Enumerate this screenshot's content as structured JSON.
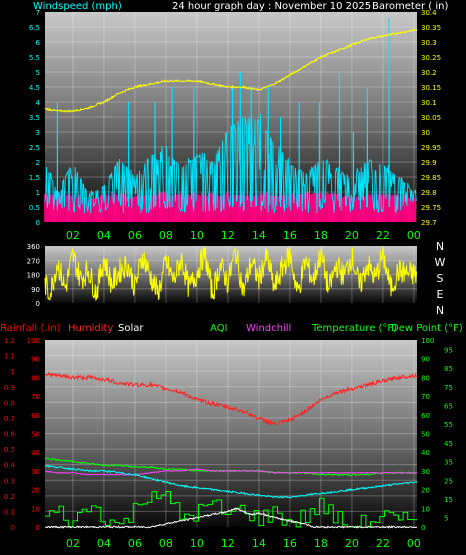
{
  "colors": {
    "wind": "#00e5ff",
    "gust": "#ff0080",
    "barometer": "#ffff00",
    "direction": "#ffff00",
    "humidity": "#ff2020",
    "temperature": "#00ffff",
    "dewpoint": "#00ff00",
    "windchill": "#ff40ff",
    "solar": "#ffffff",
    "rain": "#ff0000",
    "axis_left_top": "#00ffff",
    "axis_right_top": "#ffff00",
    "axis_left_bottom": "#ff0000",
    "axis_right_bottom": "#00ff00",
    "time_labels": "#00ff00",
    "compass": "#ffffff"
  },
  "chart_data": [
    {
      "type": "line",
      "panel": "top",
      "title": "24 hour graph day : November 10 2025",
      "left_label": "Windspeed (mph)",
      "right_label": "Barometer ( in)",
      "grid": true,
      "y_left_ticks": [
        "0",
        "0.5",
        "1",
        "1.5",
        "2",
        "2.5",
        "3",
        "3.5",
        "4",
        "4.5",
        "5",
        "5.5",
        "6",
        "6.5",
        "7"
      ],
      "y_left_range": [
        0,
        7
      ],
      "y_right_ticks": [
        "29.7",
        "29.75",
        "29.8",
        "29.85",
        "29.9",
        "29.95",
        "30",
        "30.05",
        "30.1",
        "30.15",
        "30.2",
        "30.25",
        "30.3",
        "30.35",
        "30.4"
      ],
      "y_right_range": [
        29.7,
        30.4
      ],
      "series": [
        {
          "key": "barometer",
          "axis": "right",
          "x": [
            0,
            1,
            2,
            3,
            4,
            5,
            6,
            7,
            8,
            9,
            10,
            11,
            12,
            13,
            14,
            15,
            16,
            17,
            18,
            19,
            20,
            21,
            22,
            23,
            24
          ],
          "values": [
            30.08,
            30.07,
            30.07,
            30.08,
            30.1,
            30.13,
            30.15,
            30.16,
            30.17,
            30.17,
            30.17,
            30.16,
            30.15,
            30.15,
            30.14,
            30.16,
            30.19,
            30.22,
            30.25,
            30.27,
            30.29,
            30.31,
            30.32,
            30.33,
            30.34
          ]
        },
        {
          "key": "wind",
          "axis": "left",
          "style": "spikes",
          "x": [
            0,
            1,
            2,
            3,
            4,
            5,
            6,
            7,
            8,
            9,
            10,
            11,
            12,
            13,
            14,
            15,
            16,
            17,
            18,
            19,
            20,
            21,
            22,
            23,
            24
          ],
          "values": [
            2.2,
            1.0,
            2.0,
            0.9,
            1.2,
            2.1,
            1.5,
            2.2,
            2.4,
            1.8,
            2.2,
            2.0,
            3.1,
            3.5,
            3.4,
            2.6,
            1.9,
            1.6,
            2.1,
            1.8,
            1.4,
            2.1,
            1.9,
            1.5,
            1.0
          ],
          "peaks_x": [
            1.0,
            5.6,
            7.3,
            8.4,
            9.8,
            12.3,
            12.8,
            13.5,
            14.6,
            15.4,
            16.6,
            17.9,
            19.2,
            20.1,
            21.0,
            22.4
          ],
          "peaks": [
            4.0,
            4.0,
            4.0,
            4.5,
            4.5,
            4.5,
            5.0,
            4.5,
            4.5,
            3.5,
            4.0,
            4.0,
            5.0,
            3.0,
            4.5,
            6.8
          ]
        },
        {
          "key": "gust",
          "axis": "left",
          "style": "band",
          "x": [
            0,
            1,
            2,
            3,
            4,
            5,
            6,
            7,
            8,
            9,
            10,
            11,
            12,
            13,
            14,
            15,
            16,
            17,
            18,
            19,
            20,
            21,
            22,
            23,
            24
          ],
          "values": [
            1.0,
            1.0,
            1.0,
            0.8,
            1.0,
            1.0,
            0.9,
            1.0,
            1.0,
            1.0,
            1.0,
            1.0,
            1.0,
            1.0,
            1.0,
            1.0,
            1.0,
            1.0,
            1.0,
            1.0,
            0.9,
            1.0,
            1.0,
            1.0,
            0.9
          ]
        }
      ]
    },
    {
      "type": "line",
      "panel": "direction",
      "y_ticks": [
        "0",
        "90",
        "180",
        "270",
        "360"
      ],
      "y_range": [
        0,
        360
      ],
      "compass_labels": [
        "N",
        "W",
        "S",
        "E",
        "N"
      ],
      "grid": true,
      "series": [
        {
          "key": "direction",
          "x": [
            0,
            0.5,
            1,
            1.5,
            2,
            2.5,
            3,
            3.5,
            4,
            4.5,
            5,
            5.5,
            6,
            6.5,
            7,
            7.5,
            8,
            8.5,
            9,
            9.5,
            10,
            10.5,
            11,
            11.5,
            12,
            12.5,
            13,
            13.5,
            14,
            14.5,
            15,
            15.5,
            16,
            16.5,
            17,
            17.5,
            18,
            18.5,
            19,
            19.5,
            20,
            20.5,
            21,
            21.5,
            22,
            22.5,
            23,
            23.5,
            24
          ],
          "values": [
            180,
            45,
            260,
            90,
            300,
            150,
            210,
            60,
            280,
            120,
            200,
            250,
            100,
            300,
            170,
            60,
            260,
            140,
            280,
            90,
            190,
            320,
            60,
            240,
            130,
            330,
            70,
            260,
            150,
            300,
            90,
            220,
            310,
            60,
            270,
            140,
            320,
            80,
            240,
            170,
            300,
            100,
            250,
            150,
            310,
            90,
            200,
            190,
            180
          ]
        }
      ]
    },
    {
      "type": "line",
      "panel": "bottom",
      "left_labels": [
        "Rainfall (.in)",
        "Humidity",
        "Solar"
      ],
      "right_labels": [
        "AQI",
        "Windchill",
        "Temperature (°F)",
        "Dew Point (°F)"
      ],
      "grid": true,
      "y_rain_ticks": [
        "0",
        "0.1",
        "0.2",
        "0.3",
        "0.4",
        "0.5",
        "0.6",
        "0.7",
        "0.8",
        "0.9",
        "1",
        "1.1",
        "1.2"
      ],
      "y_rain_range": [
        0,
        1.2
      ],
      "y_humidity_ticks": [
        "0",
        "10",
        "20",
        "30",
        "40",
        "50",
        "60",
        "70",
        "80",
        "90",
        "100"
      ],
      "y_humidity_range": [
        0,
        100
      ],
      "y_temp_ticks": [
        "0",
        "5",
        "10",
        "15",
        "20",
        "25",
        "30",
        "35",
        "40",
        "45",
        "50",
        "55",
        "60",
        "65",
        "70",
        "75",
        "80",
        "85",
        "90",
        "95",
        "100"
      ],
      "y_temp_range": [
        0,
        100
      ],
      "x_ticks": [
        "02",
        "04",
        "06",
        "08",
        "10",
        "12",
        "14",
        "16",
        "18",
        "20",
        "22",
        "00"
      ],
      "x_tick_hours": [
        2,
        4,
        6,
        8,
        10,
        12,
        14,
        16,
        18,
        20,
        22,
        24
      ],
      "x_range": [
        0,
        24
      ],
      "series": [
        {
          "key": "humidity",
          "axis": "humidity",
          "x": [
            0,
            1,
            2,
            3,
            4,
            5,
            6,
            7,
            8,
            9,
            10,
            11,
            12,
            13,
            14,
            15,
            16,
            17,
            18,
            19,
            20,
            21,
            22,
            23,
            24
          ],
          "values": [
            82,
            81,
            80,
            80,
            79,
            77,
            76,
            76,
            74,
            72,
            68,
            66,
            64,
            62,
            58,
            55,
            57,
            62,
            68,
            72,
            74,
            76,
            78,
            80,
            81
          ]
        },
        {
          "key": "temperature",
          "axis": "temp",
          "x": [
            0,
            1,
            2,
            3,
            4,
            5,
            6,
            7,
            8,
            9,
            10,
            11,
            12,
            13,
            14,
            15,
            16,
            17,
            18,
            19,
            20,
            21,
            22,
            23,
            24
          ],
          "values": [
            33,
            32,
            31,
            30,
            30,
            29,
            28,
            26,
            24,
            22,
            21,
            20,
            19,
            18,
            17,
            16,
            16,
            17,
            18,
            19,
            20,
            21,
            22,
            23,
            24
          ]
        },
        {
          "key": "dewpoint",
          "axis": "temp",
          "x": [
            0,
            1,
            2,
            3,
            4,
            5,
            6,
            7,
            8,
            9,
            10,
            11,
            12,
            13,
            14,
            15,
            16,
            17,
            18,
            19,
            20,
            21,
            22,
            23,
            24
          ],
          "values": [
            37,
            36,
            35,
            34,
            33,
            33,
            32,
            32,
            31,
            31,
            30,
            30,
            30,
            30,
            30,
            29,
            29,
            29,
            28,
            28,
            28,
            28,
            29,
            29,
            29
          ]
        },
        {
          "key": "windchill",
          "axis": "temp",
          "x": [
            0,
            1,
            2,
            3,
            4,
            5,
            6,
            7,
            8,
            9,
            10,
            11,
            12,
            13,
            14,
            15,
            16,
            17,
            18,
            19,
            20,
            21,
            22,
            23,
            24
          ],
          "values": [
            30,
            29,
            29,
            28,
            28,
            28,
            28,
            29,
            30,
            30,
            31,
            30,
            30,
            30,
            30,
            29,
            29,
            29,
            29,
            29,
            29,
            29,
            29,
            29,
            29
          ]
        },
        {
          "key": "solar",
          "axis": "rain",
          "x": [
            0,
            6,
            7,
            8,
            9,
            10,
            11,
            12,
            12.5,
            13,
            13.5,
            14,
            15,
            16,
            17,
            17.5,
            24
          ],
          "values": [
            0,
            0,
            0,
            0.02,
            0.04,
            0.06,
            0.08,
            0.1,
            0.12,
            0.1,
            0.08,
            0.09,
            0.06,
            0.04,
            0.02,
            0,
            0
          ]
        },
        {
          "key": "aqi",
          "style": "step",
          "axis": "temp",
          "x": [
            0,
            1,
            2,
            3,
            4,
            5,
            6,
            7,
            8,
            9,
            10,
            11,
            12,
            13,
            14,
            15,
            16,
            17,
            18,
            19,
            20,
            21,
            22,
            23,
            24
          ],
          "values": [
            5,
            8,
            2,
            12,
            6,
            0,
            10,
            20,
            15,
            5,
            8,
            12,
            6,
            10,
            4,
            8,
            2,
            6,
            12,
            4,
            0,
            3,
            6,
            2,
            5
          ]
        }
      ]
    }
  ]
}
